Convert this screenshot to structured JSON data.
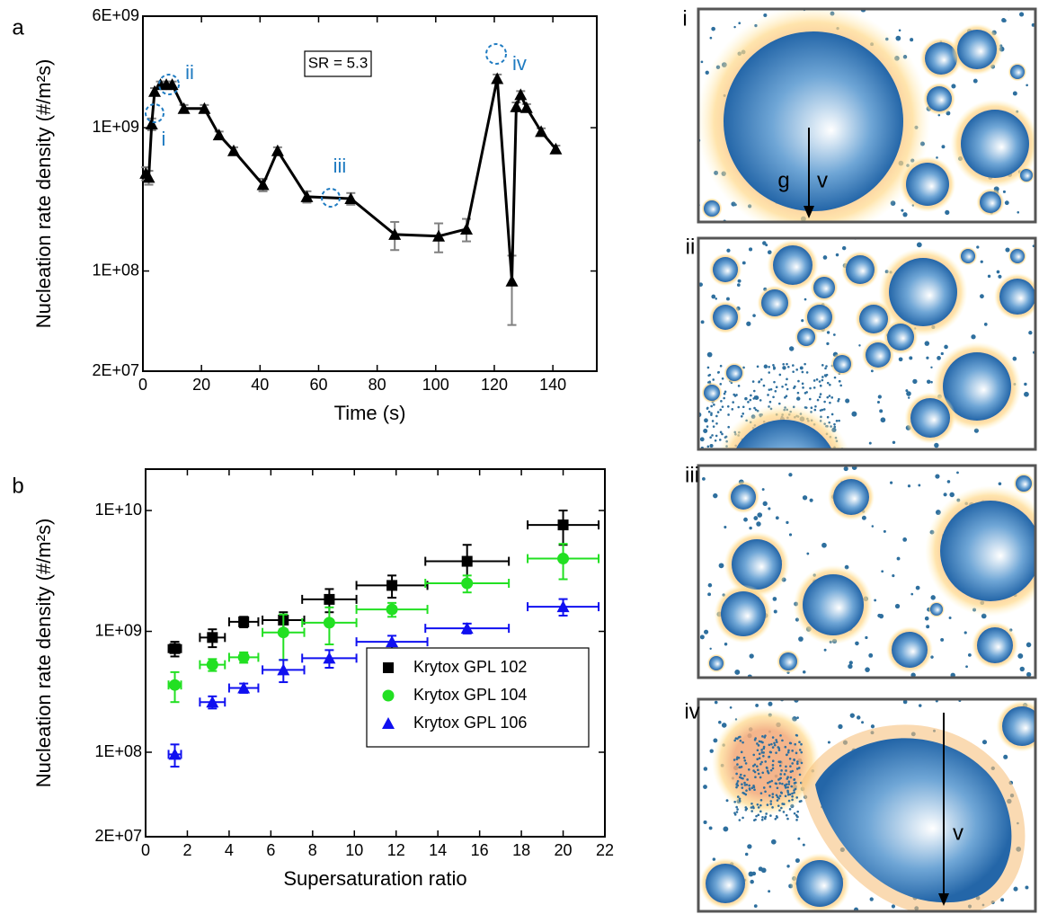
{
  "figure_labels": [
    "a",
    "b"
  ],
  "chart_data": [
    {
      "type": "line",
      "xlabel": "Time (s)",
      "ylabel": "Nucleation rate density (#/m²s)",
      "x": [
        1,
        2,
        3,
        4,
        6,
        8,
        10,
        14,
        21,
        26,
        31,
        41,
        46,
        56,
        71,
        86,
        101,
        110.5,
        121,
        126,
        127.5,
        129,
        131,
        136,
        141
      ],
      "values": [
        480000000.0,
        450000000.0,
        1060000000.0,
        1790000000.0,
        2000000000.0,
        2000000000.0,
        2000000000.0,
        1360000000.0,
        1360000000.0,
        890000000.0,
        690000000.0,
        400000000.0,
        690000000.0,
        330000000.0,
        320000000.0,
        180000000.0,
        175000000.0,
        196000000.0,
        2200000000.0,
        85000000.0,
        1400000000.0,
        1700000000.0,
        1380000000.0,
        940000000.0,
        710000000.0
      ],
      "errors": [
        50000000.0,
        50000000.0,
        100000000.0,
        100000000.0,
        100000000.0,
        100000000.0,
        100000000.0,
        80000000.0,
        80000000.0,
        50000000.0,
        40000000.0,
        40000000.0,
        40000000.0,
        30000000.0,
        30000000.0,
        40000000.0,
        40000000.0,
        35000000.0,
        150000000.0,
        43000000.0,
        100000000.0,
        100000000.0,
        80000000.0,
        50000000.0,
        40000000.0
      ],
      "color": "#000000",
      "error_color": "#808080",
      "marker": "triangle",
      "xlim": [
        0,
        155
      ],
      "xticks": [
        0,
        20,
        40,
        60,
        80,
        100,
        120,
        140
      ],
      "ylim": [
        20000000.0,
        6000000000.0
      ],
      "ylog": true,
      "yticks": [
        {
          "value": 20000000.0,
          "label": "2E+07"
        },
        {
          "value": 100000000.0,
          "label": "1E+08"
        },
        {
          "value": 1000000000.0,
          "label": "1E+09"
        },
        {
          "value": 6000000000.0,
          "label": "6E+09"
        }
      ],
      "annotations": [
        "SR = 5.3",
        "i",
        "ii",
        "iii",
        "iv"
      ],
      "annotation_color": "#1f7bc1"
    },
    {
      "type": "scatter",
      "xlabel": "Supersaturation ratio",
      "ylabel": "Nucleation rate density (#/m²s)",
      "x": [
        1.4,
        3.2,
        4.7,
        6.6,
        8.8,
        11.8,
        15.4,
        20
      ],
      "xerr": [
        0.3,
        0.6,
        0.7,
        1.0,
        1.3,
        1.7,
        2.0,
        1.7
      ],
      "series": [
        {
          "name": "Krytox GPL 102",
          "color": "#000000",
          "marker": "square",
          "values": [
            720000000.0,
            890000000.0,
            1200000000.0,
            1240000000.0,
            1840000000.0,
            2400000000.0,
            3800000000.0,
            7600000000.0
          ],
          "errors": [
            100000000.0,
            150000000.0,
            120000000.0,
            200000000.0,
            400000000.0,
            500000000.0,
            1400000000.0,
            2400000000.0
          ]
        },
        {
          "name": "Krytox GPL 104",
          "color": "#22e022",
          "marker": "circle",
          "values": [
            360000000.0,
            530000000.0,
            610000000.0,
            980000000.0,
            1180000000.0,
            1520000000.0,
            2500000000.0,
            4000000000.0
          ],
          "errors": [
            100000000.0,
            60000000.0,
            60000000.0,
            400000000.0,
            400000000.0,
            200000000.0,
            400000000.0,
            1300000000.0
          ]
        },
        {
          "name": "Krytox GPL 106",
          "color": "#1010f0",
          "marker": "triangle",
          "values": [
            96000000.0,
            260000000.0,
            340000000.0,
            480000000.0,
            600000000.0,
            820000000.0,
            1060000000.0,
            1600000000.0
          ],
          "errors": [
            20000000.0,
            30000000.0,
            30000000.0,
            100000000.0,
            100000000.0,
            100000000.0,
            100000000.0,
            250000000.0
          ]
        }
      ],
      "xlim": [
        0,
        22
      ],
      "xticks": [
        0,
        2,
        4,
        6,
        8,
        10,
        12,
        14,
        16,
        18,
        20,
        22
      ],
      "ylim": [
        20000000.0,
        22000000000.0
      ],
      "ylog": true,
      "yticks": [
        {
          "value": 20000000.0,
          "label": "2E+07"
        },
        {
          "value": 100000000.0,
          "label": "1E+08"
        },
        {
          "value": 1000000000.0,
          "label": "1E+09"
        },
        {
          "value": 10000000000.0,
          "label": "1E+10"
        }
      ],
      "legend": "lower right"
    }
  ],
  "panels": [
    {
      "label": "i",
      "texts": [
        "g",
        "v"
      ]
    },
    {
      "label": "ii"
    },
    {
      "label": "iii"
    },
    {
      "label": "iv",
      "texts": [
        "v"
      ]
    }
  ]
}
